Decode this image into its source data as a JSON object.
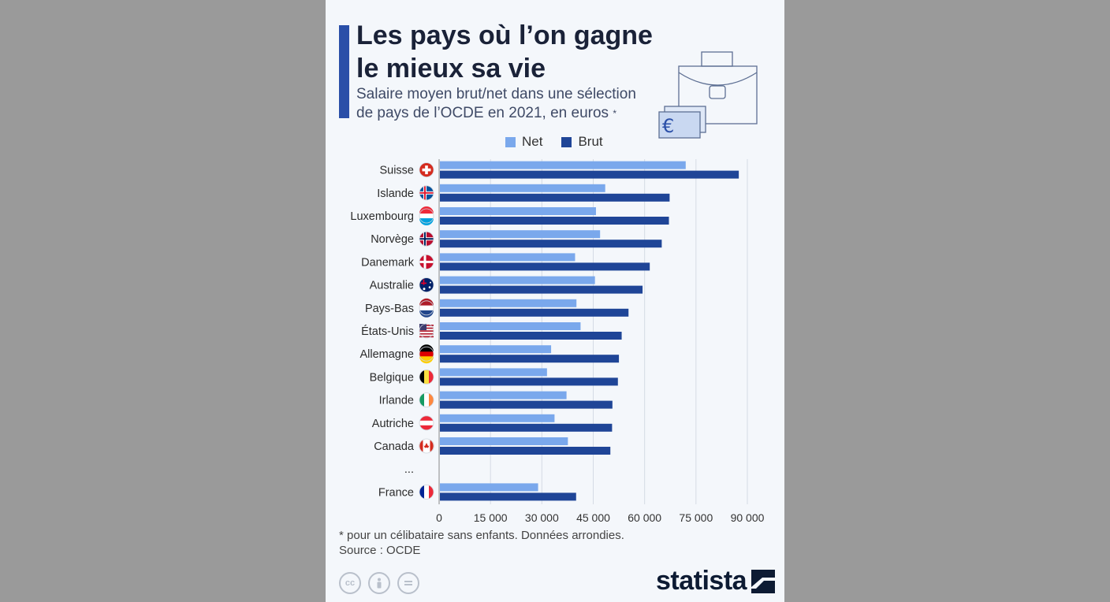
{
  "header": {
    "title": "Les pays où l’on gagne\nle mieux sa vie",
    "subtitle": "Salaire moyen brut/net dans une sélection\nde pays de l’OCDE en 2021, en euros",
    "subtitle_mark": "*"
  },
  "legend": {
    "net_label": "Net",
    "brut_label": "Brut"
  },
  "colors": {
    "net": "#7aa8ec",
    "brut": "#1f4597",
    "accent": "#2a4fa8",
    "grid": "#d5dbe4"
  },
  "chart_data": {
    "type": "bar",
    "orientation": "horizontal",
    "categories": [
      "Suisse",
      "Islande",
      "Luxembourg",
      "Norvège",
      "Danemark",
      "Australie",
      "Pays-Bas",
      "États-Unis",
      "Allemagne",
      "Belgique",
      "Irlande",
      "Autriche",
      "Canada",
      "...",
      "France"
    ],
    "flags": [
      "ch",
      "is",
      "lu",
      "no",
      "dk",
      "au",
      "nl",
      "us",
      "de",
      "be",
      "ie",
      "at",
      "ca",
      "",
      "fr"
    ],
    "series": [
      {
        "name": "Net",
        "values": [
          72000,
          48500,
          45800,
          47000,
          39700,
          45500,
          40100,
          41300,
          32700,
          31500,
          37200,
          33700,
          37600,
          null,
          28900
        ]
      },
      {
        "name": "Brut",
        "values": [
          87500,
          67300,
          67100,
          65000,
          61500,
          59400,
          55300,
          53300,
          52500,
          52200,
          50600,
          50500,
          50000,
          null,
          40000
        ]
      }
    ],
    "xlim": [
      0,
      90000
    ],
    "xticks": [
      0,
      15000,
      30000,
      45000,
      60000,
      75000,
      90000
    ],
    "xtick_labels": [
      "0",
      "15 000",
      "30 000",
      "45 000",
      "60 000",
      "75 000",
      "90 000"
    ],
    "grid": true,
    "legend_position": "top"
  },
  "footer": {
    "footnote": "* pour un célibataire sans enfants. Données arrondies.",
    "source": "Source : OCDE",
    "cc_icons": [
      "cc-icon",
      "by-icon",
      "nd-icon"
    ],
    "brand": "statista"
  }
}
